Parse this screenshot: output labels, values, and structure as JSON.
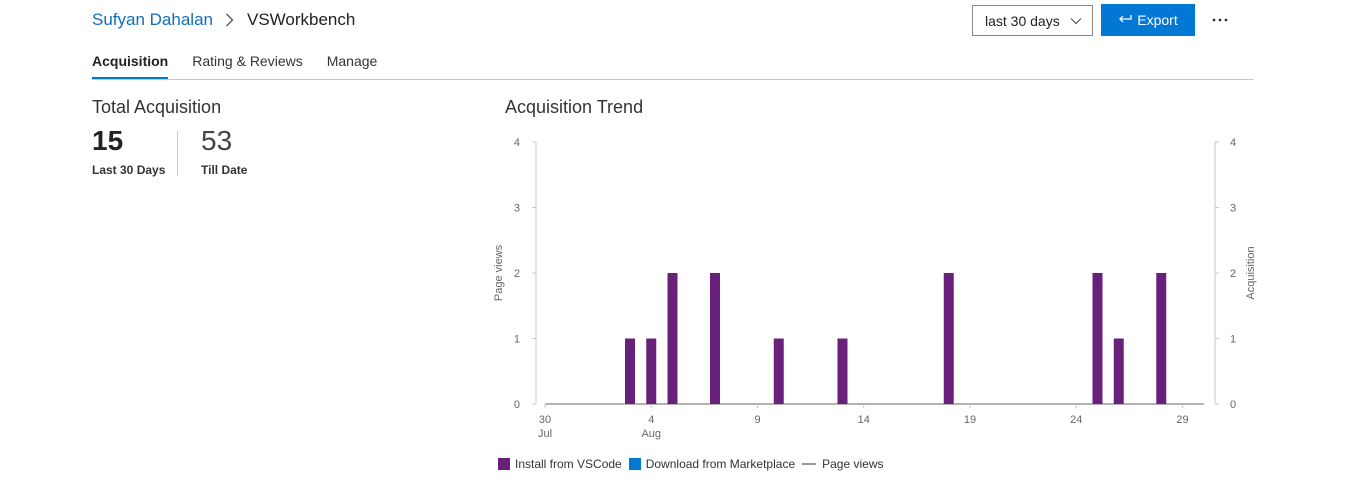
{
  "breadcrumb": {
    "publisher": "Sufyan Dahalan",
    "extension": "VSWorkbench"
  },
  "header": {
    "range_value": "last 30 days",
    "export_label": "Export",
    "more_label": "⋯"
  },
  "tabs": [
    {
      "label": "Acquisition",
      "active": true
    },
    {
      "label": "Rating & Reviews",
      "active": false
    },
    {
      "label": "Manage",
      "active": false
    }
  ],
  "total_acquisition": {
    "title": "Total Acquisition",
    "last_30_days": {
      "value": "15",
      "label": "Last 30 Days"
    },
    "till_date": {
      "value": "53",
      "label": "Till Date"
    }
  },
  "colors": {
    "accent": "#0078d4",
    "install": "#68217a",
    "download": "#0078d4",
    "pageviews": "#999999"
  },
  "chart_data": {
    "type": "bar",
    "title": "Acquisition Trend",
    "ylabel_left": "Page views",
    "ylabel_right": "Acquisition",
    "ylim": [
      0,
      4
    ],
    "yticks": [
      0,
      1,
      2,
      3,
      4
    ],
    "x_start": "2020-07-30",
    "x": [
      "Jul 30",
      "Jul 31",
      "Aug 1",
      "Aug 2",
      "Aug 3",
      "Aug 4",
      "Aug 5",
      "Aug 6",
      "Aug 7",
      "Aug 8",
      "Aug 9",
      "Aug 10",
      "Aug 11",
      "Aug 12",
      "Aug 13",
      "Aug 14",
      "Aug 15",
      "Aug 16",
      "Aug 17",
      "Aug 18",
      "Aug 19",
      "Aug 20",
      "Aug 21",
      "Aug 22",
      "Aug 23",
      "Aug 24",
      "Aug 25",
      "Aug 26",
      "Aug 27",
      "Aug 28",
      "Aug 29",
      "Aug 30"
    ],
    "xticks": [
      {
        "label": "30",
        "sublabel": "Jul"
      },
      {
        "label": "4",
        "sublabel": "Aug"
      },
      {
        "label": "9",
        "sublabel": ""
      },
      {
        "label": "14",
        "sublabel": ""
      },
      {
        "label": "19",
        "sublabel": ""
      },
      {
        "label": "24",
        "sublabel": ""
      },
      {
        "label": "29",
        "sublabel": ""
      }
    ],
    "series": [
      {
        "name": "Install from VSCode",
        "type": "bar",
        "color": "#68217a",
        "values": [
          0,
          0,
          0,
          0,
          1,
          1,
          2,
          0,
          2,
          0,
          0,
          1,
          0,
          0,
          1,
          0,
          0,
          0,
          0,
          2,
          0,
          0,
          0,
          0,
          0,
          0,
          2,
          1,
          0,
          2,
          0,
          0
        ]
      },
      {
        "name": "Download from Marketplace",
        "type": "bar",
        "color": "#0078d4",
        "values": [
          0,
          0,
          0,
          0,
          0,
          0,
          0,
          0,
          0,
          0,
          0,
          0,
          0,
          0,
          0,
          0,
          0,
          0,
          0,
          0,
          0,
          0,
          0,
          0,
          0,
          0,
          0,
          0,
          0,
          0,
          0,
          0
        ]
      },
      {
        "name": "Page views",
        "type": "line",
        "color": "#999999",
        "values": [
          0,
          0,
          0,
          0,
          0,
          0,
          0,
          0,
          0,
          0,
          0,
          0,
          0,
          0,
          0,
          0,
          0,
          0,
          0,
          0,
          0,
          0,
          0,
          0,
          0,
          0,
          0,
          0,
          0,
          0,
          0,
          0
        ]
      }
    ],
    "grid": false,
    "legend_position": "bottom-left"
  }
}
